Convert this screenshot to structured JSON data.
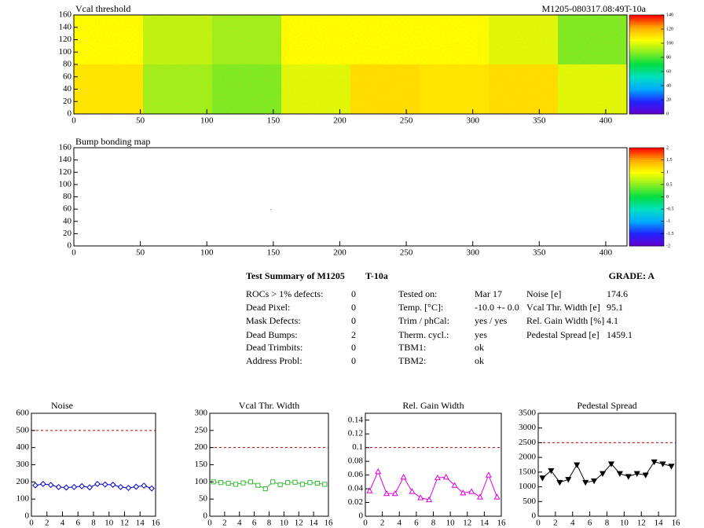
{
  "chart_data": [
    {
      "type": "heatmap",
      "title": "Vcal threshold",
      "subtitle": "M1205-080317.08:49T-10a",
      "xlim": [
        0,
        416
      ],
      "xticks": [
        0,
        50,
        100,
        150,
        200,
        250,
        300,
        350,
        400
      ],
      "ylim": [
        0,
        160
      ],
      "yticks": [
        0,
        20,
        40,
        60,
        80,
        100,
        120,
        140,
        160
      ],
      "z": [
        [
          110,
          90,
          85,
          100,
          112,
          110,
          112,
          100
        ],
        [
          105,
          95,
          90,
          105,
          105,
          105,
          100,
          85
        ]
      ],
      "zlim": [
        0,
        140
      ],
      "zticks": [
        0,
        20,
        40,
        60,
        80,
        100,
        120,
        140
      ],
      "palette": [
        "#6600cc",
        "#2222ff",
        "#00aaff",
        "#00e0c0",
        "#00dd44",
        "#88ee22",
        "#ffff00",
        "#ffaa00",
        "#ff0000"
      ]
    },
    {
      "type": "heatmap",
      "title": "Bump bonding map",
      "xlim": [
        0,
        416
      ],
      "xticks": [
        0,
        50,
        100,
        150,
        200,
        250,
        300,
        350,
        400
      ],
      "ylim": [
        0,
        160
      ],
      "yticks": [
        0,
        20,
        40,
        60,
        80,
        100,
        120,
        140,
        160
      ],
      "points": {
        "x": [
          148
        ],
        "y": [
          60
        ]
      },
      "zlim": [
        -2,
        2
      ],
      "zticks": [
        -2,
        -1.5,
        -1,
        -0.5,
        0,
        0.5,
        1,
        1.5,
        2
      ],
      "palette": [
        "#6600cc",
        "#2222ff",
        "#00aaff",
        "#00e0c0",
        "#00dd44",
        "#88ee22",
        "#ffff00",
        "#ffaa00",
        "#ff0000"
      ]
    },
    {
      "type": "line",
      "title": "Noise",
      "xlim": [
        0,
        16
      ],
      "xticks": [
        0,
        2,
        4,
        6,
        8,
        10,
        12,
        14,
        16
      ],
      "ylim": [
        0,
        600
      ],
      "yticks": [
        0,
        100,
        200,
        300,
        400,
        500,
        600
      ],
      "threshold": 500,
      "x": [
        0.5,
        1.5,
        2.5,
        3.5,
        4.5,
        5.5,
        6.5,
        7.5,
        8.5,
        9.5,
        10.5,
        11.5,
        12.5,
        13.5,
        14.5,
        15.5
      ],
      "values": [
        180,
        188,
        182,
        170,
        167,
        170,
        175,
        168,
        188,
        185,
        183,
        170,
        165,
        172,
        178,
        162
      ],
      "color": "#0000cc",
      "marker": "diamond",
      "filled": false
    },
    {
      "type": "line",
      "title": "Vcal Thr. Width",
      "xlim": [
        0,
        16
      ],
      "xticks": [
        0,
        2,
        4,
        6,
        8,
        10,
        12,
        14,
        16
      ],
      "ylim": [
        0,
        300
      ],
      "yticks": [
        0,
        50,
        100,
        150,
        200,
        250,
        300
      ],
      "threshold": 200,
      "x": [
        0.5,
        1.5,
        2.5,
        3.5,
        4.5,
        5.5,
        6.5,
        7.5,
        8.5,
        9.5,
        10.5,
        11.5,
        12.5,
        13.5,
        14.5,
        15.5
      ],
      "values": [
        100,
        98,
        96,
        93,
        97,
        100,
        90,
        80,
        100,
        92,
        98,
        99,
        93,
        98,
        96,
        93
      ],
      "color": "#33bb33",
      "marker": "square",
      "filled": false
    },
    {
      "type": "line",
      "title": "Rel. Gain Width",
      "xlim": [
        0,
        16
      ],
      "xticks": [
        0,
        2,
        4,
        6,
        8,
        10,
        12,
        14,
        16
      ],
      "ylim": [
        0,
        0.15
      ],
      "yticks": [
        0,
        0.02,
        0.04,
        0.06,
        0.08,
        0.1,
        0.12,
        0.14
      ],
      "threshold": 0.1,
      "x": [
        0.5,
        1.5,
        2.5,
        3.5,
        4.5,
        5.5,
        6.5,
        7.5,
        8.5,
        9.5,
        10.5,
        11.5,
        12.5,
        13.5,
        14.5,
        15.5
      ],
      "values": [
        0.037,
        0.065,
        0.033,
        0.033,
        0.057,
        0.036,
        0.027,
        0.024,
        0.056,
        0.057,
        0.045,
        0.034,
        0.036,
        0.028,
        0.06,
        0.028
      ],
      "color": "#dd00dd",
      "marker": "triangle",
      "filled": false
    },
    {
      "type": "line",
      "title": "Pedestal Spread",
      "xlim": [
        0,
        16
      ],
      "xticks": [
        0,
        2,
        4,
        6,
        8,
        10,
        12,
        14,
        16
      ],
      "ylim": [
        0,
        3500
      ],
      "yticks": [
        0,
        500,
        1000,
        1500,
        2000,
        2500,
        3000,
        3500
      ],
      "threshold": 2500,
      "x": [
        0.5,
        1.5,
        2.5,
        3.5,
        4.5,
        5.5,
        6.5,
        7.5,
        8.5,
        9.5,
        10.5,
        11.5,
        12.5,
        13.5,
        14.5,
        15.5
      ],
      "values": [
        1300,
        1550,
        1150,
        1250,
        1750,
        1150,
        1200,
        1450,
        1780,
        1450,
        1350,
        1450,
        1400,
        1850,
        1780,
        1700
      ],
      "color": "#000000",
      "marker": "triangle-down",
      "filled": true
    }
  ],
  "summary": {
    "title": "Test Summary of M1205",
    "temp": "T-10a",
    "grade": "GRADE:  A",
    "left": [
      [
        "ROCs > 1% defects:",
        "0"
      ],
      [
        "Dead Pixel:",
        "0"
      ],
      [
        "Mask Defects:",
        "0"
      ],
      [
        "Dead Bumps:",
        "2"
      ],
      [
        "Dead Trimbits:",
        "0"
      ],
      [
        "Address Probl:",
        "0"
      ]
    ],
    "middle": [
      [
        "Tested on:",
        "Mar 17"
      ],
      [
        "Temp. [°C]:",
        "-10.0 +- 0.0"
      ],
      [
        "Trim / phCal:",
        "yes / yes"
      ],
      [
        "Therm. cycl.:",
        "yes"
      ],
      [
        "TBM1:",
        "ok"
      ],
      [
        "TBM2:",
        "ok"
      ]
    ],
    "right": [
      [
        "Noise [e]",
        "174.6"
      ],
      [
        "Vcal Thr. Width [e]",
        "95.1"
      ],
      [
        "Rel. Gain Width [%]",
        "4.1"
      ],
      [
        "Pedestal Spread [e]",
        "1459.1"
      ]
    ]
  }
}
